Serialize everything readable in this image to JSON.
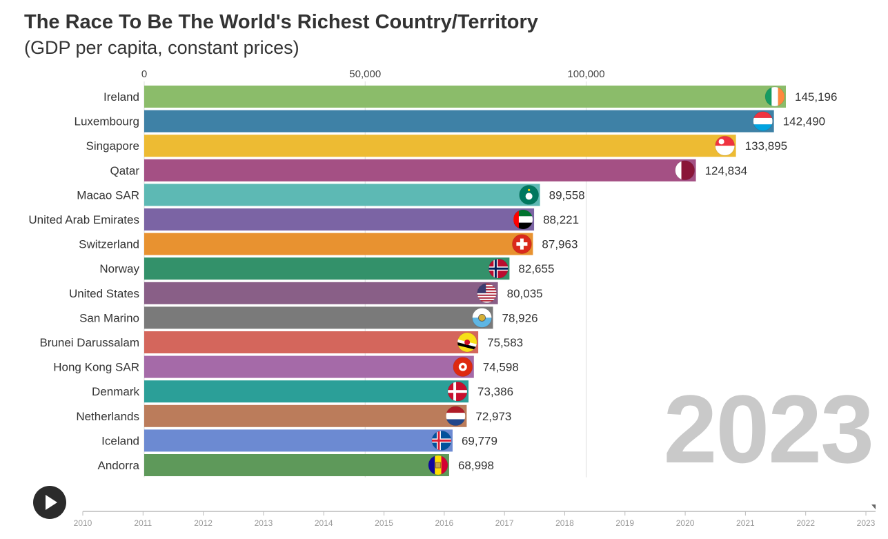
{
  "title": "The Race To Be The World's Richest Country/Territory",
  "subtitle": "(GDP per capita, constant prices)",
  "current_year": "2023",
  "play_icon": "play-icon",
  "timeline": {
    "years": [
      "2010",
      "2011",
      "2012",
      "2013",
      "2014",
      "2015",
      "2016",
      "2017",
      "2018",
      "2019",
      "2020",
      "2021",
      "2022",
      "2023"
    ],
    "current": "2023"
  },
  "chart_data": {
    "type": "bar",
    "orientation": "horizontal",
    "title": "The Race To Be The World's Richest Country/Territory",
    "subtitle": "(GDP per capita, constant prices)",
    "xlim": [
      0,
      145196
    ],
    "x_ticks": [
      0,
      50000,
      100000
    ],
    "x_tick_labels": [
      "0",
      "50,000",
      "100,000"
    ],
    "grid": true,
    "categories": [
      "Ireland",
      "Luxembourg",
      "Singapore",
      "Qatar",
      "Macao SAR",
      "United Arab Emirates",
      "Switzerland",
      "Norway",
      "United States",
      "San Marino",
      "Brunei Darussalam",
      "Hong Kong SAR",
      "Denmark",
      "Netherlands",
      "Iceland",
      "Andorra"
    ],
    "values": [
      145196,
      142490,
      133895,
      124834,
      89558,
      88221,
      87963,
      82655,
      80035,
      78926,
      75583,
      74598,
      73386,
      72973,
      69779,
      68998
    ],
    "value_labels": [
      "145,196",
      "142,490",
      "133,895",
      "124,834",
      "89,558",
      "88,221",
      "87,963",
      "82,655",
      "80,035",
      "78,926",
      "75,583",
      "74,598",
      "73,386",
      "72,973",
      "69,779",
      "68,998"
    ],
    "colors": [
      "#8bbc6a",
      "#3e81a6",
      "#edbb33",
      "#a45084",
      "#5db9b4",
      "#7b64a4",
      "#e89230",
      "#33916a",
      "#895f87",
      "#7a7a7a",
      "#d4665c",
      "#a56aa8",
      "#2b9f98",
      "#bb7c5b",
      "#6c8ad2",
      "#5e995a"
    ],
    "flag_icons": [
      "ireland-flag-icon",
      "luxembourg-flag-icon",
      "singapore-flag-icon",
      "qatar-flag-icon",
      "macao-flag-icon",
      "uae-flag-icon",
      "switzerland-flag-icon",
      "norway-flag-icon",
      "united-states-flag-icon",
      "san-marino-flag-icon",
      "brunei-flag-icon",
      "hong-kong-flag-icon",
      "denmark-flag-icon",
      "netherlands-flag-icon",
      "iceland-flag-icon",
      "andorra-flag-icon"
    ]
  }
}
